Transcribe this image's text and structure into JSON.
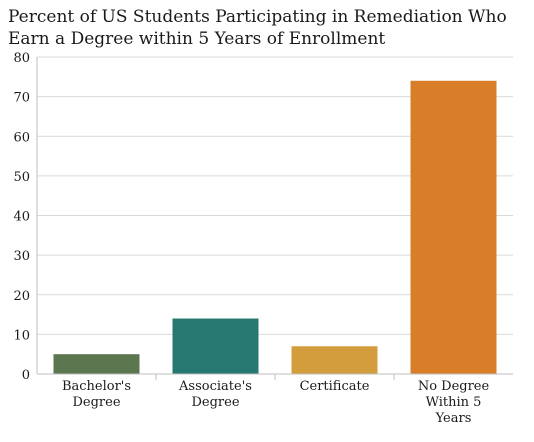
{
  "chart_data": {
    "type": "bar",
    "title": "Percent of US Students Participating in Remediation Who Earn a Degree within 5 Years of Enrollment",
    "categories": [
      [
        "Bachelor's",
        "Degree"
      ],
      [
        "Associate's",
        "Degree"
      ],
      [
        "Certificate"
      ],
      [
        "No Degree",
        "Within 5",
        "Years"
      ]
    ],
    "values": [
      5,
      14,
      7,
      74
    ],
    "colors": [
      "#5c7650",
      "#267870",
      "#d39d3e",
      "#d87e28"
    ],
    "ylim": [
      0,
      80
    ],
    "yticks": [
      0,
      10,
      20,
      30,
      40,
      50,
      60,
      70,
      80
    ],
    "grid": true,
    "legend": "none"
  }
}
